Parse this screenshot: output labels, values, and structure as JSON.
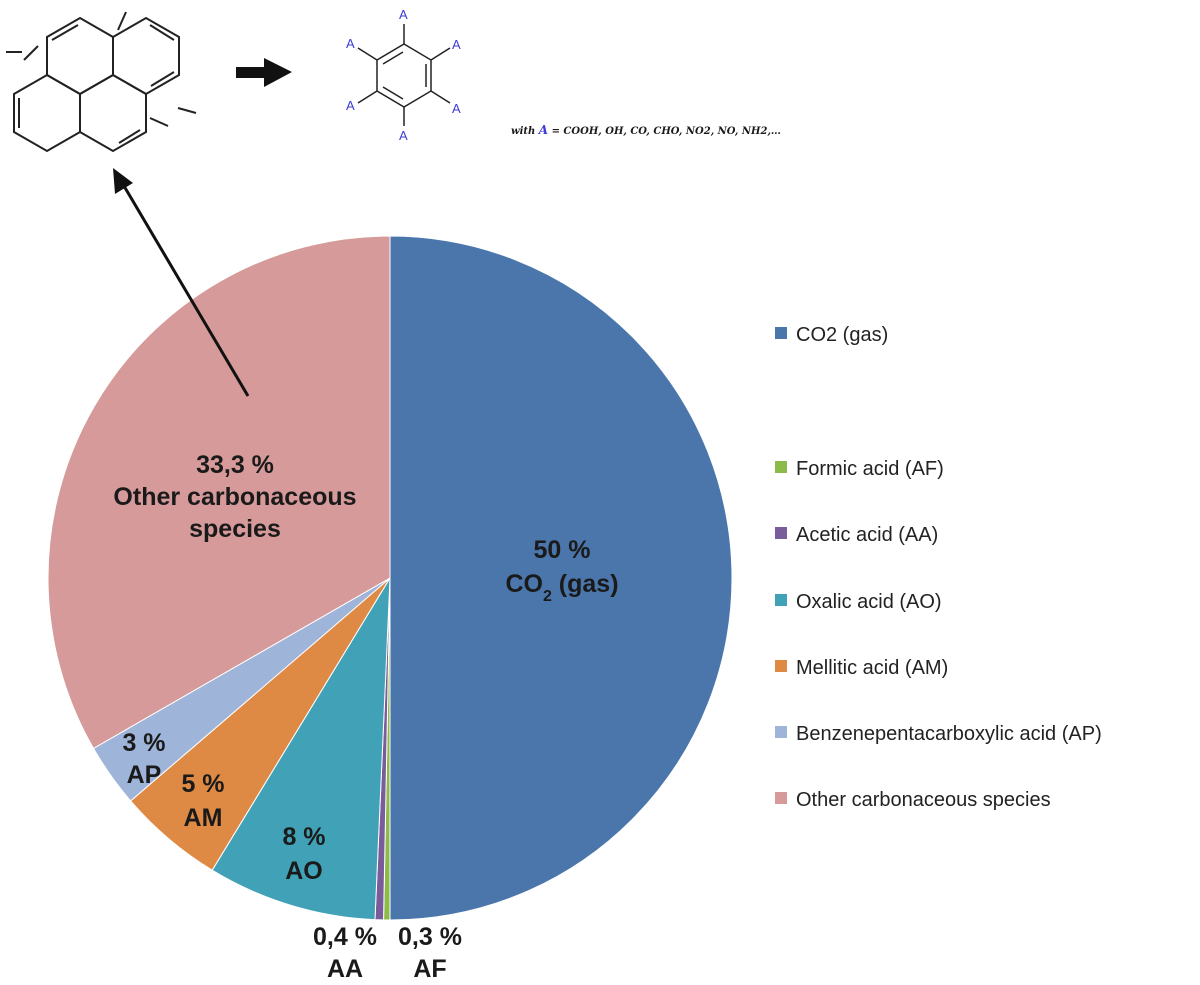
{
  "chart_data": {
    "type": "pie",
    "slices": [
      {
        "name": "CO2 (gas)",
        "value": 50,
        "label_pct": "50 %",
        "label_name": "CO",
        "label_sub": "2",
        "label_tail": " (gas)",
        "color": "#4a76ab"
      },
      {
        "name": "Formic acid (AF)",
        "value": 0.3,
        "label_pct": "0,3 %",
        "label_name": "AF",
        "color": "#8dbb4a"
      },
      {
        "name": "Acetic acid (AA)",
        "value": 0.4,
        "label_pct": "0,4 %",
        "label_name": "AA",
        "color": "#7a5b9b"
      },
      {
        "name": "Oxalic acid (AO)",
        "value": 8,
        "label_pct": "8 %",
        "label_name": "AO",
        "color": "#41a1b6"
      },
      {
        "name": "Mellitic acid (AM)",
        "value": 5,
        "label_pct": "5 %",
        "label_name": "AM",
        "color": "#de8a44"
      },
      {
        "name": "Benzenepentacarboxylic acid (AP)",
        "value": 3,
        "label_pct": "3 %",
        "label_name": "AP",
        "color": "#9fb4d9"
      },
      {
        "name": "Other carbonaceous species",
        "value": 33.3,
        "label_pct": "33,3 %",
        "label_name": "Other carbonaceous",
        "label_name2": "species",
        "color": "#d59a99"
      }
    ],
    "legend_placement": "right"
  },
  "scheme": {
    "substituent_letter": "A",
    "formula_prefix": "with ",
    "formula_var": "A",
    "formula_rest": " = COOH, OH, CO, CHO, NO2, NO, NH2,…"
  }
}
